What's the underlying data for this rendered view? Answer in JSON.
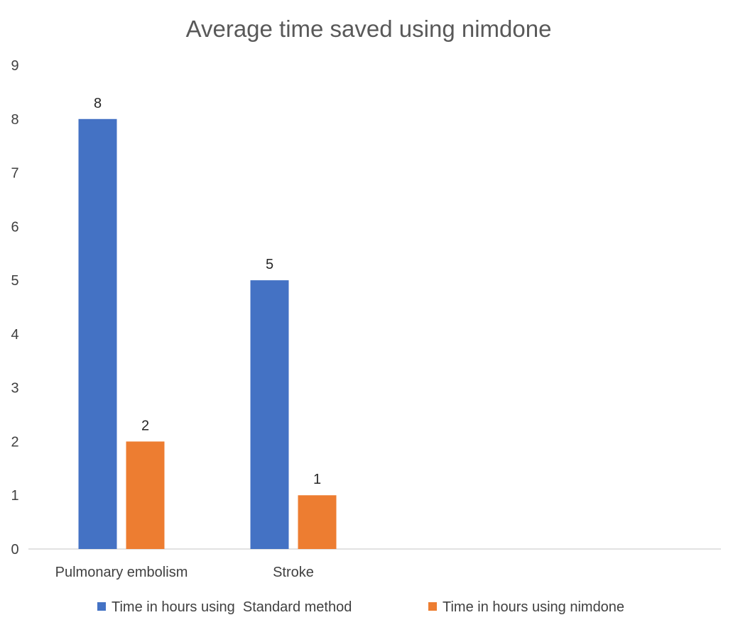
{
  "chart_data": {
    "type": "bar",
    "title": "Average time saved using nimdone",
    "xlabel": "",
    "ylabel": "",
    "categories": [
      "Pulmonary embolism",
      "Stroke"
    ],
    "series": [
      {
        "name": "Time in hours using  Standard method",
        "values": [
          8,
          5
        ],
        "color": "#4472C4"
      },
      {
        "name": "Time in hours using nimdone",
        "values": [
          2,
          1
        ],
        "color": "#ED7D31"
      }
    ],
    "ylim": [
      0,
      9
    ],
    "yticks": [
      "0",
      "1",
      "2",
      "3",
      "4",
      "5",
      "6",
      "7",
      "8",
      "9"
    ],
    "data_labels": true,
    "grid": false,
    "legend": "bottom"
  }
}
